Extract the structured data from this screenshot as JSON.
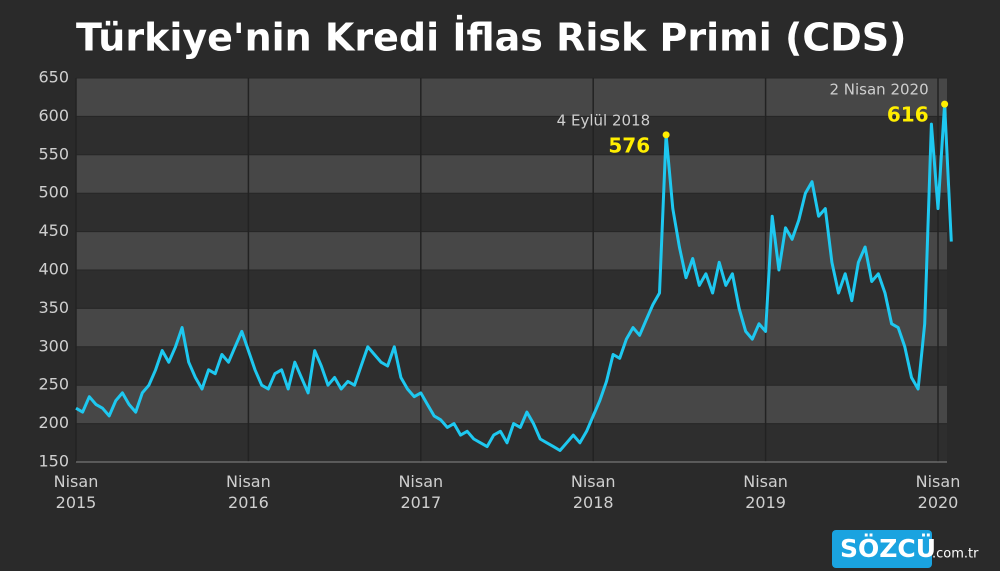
{
  "chart_data": {
    "type": "line",
    "title": "Türkiye'nin Kredi İflas Risk Primi (CDS)",
    "categories": [
      "Nisan 2015",
      null,
      null,
      null,
      null,
      null,
      null,
      null,
      null,
      null,
      null,
      null,
      null,
      null,
      null,
      null,
      null,
      null,
      null,
      null,
      null,
      null,
      null,
      null,
      null,
      null,
      "Nisan 2016",
      null,
      null,
      null,
      null,
      null,
      null,
      null,
      null,
      null,
      null,
      null,
      null,
      null,
      null,
      null,
      null,
      null,
      null,
      null,
      null,
      null,
      null,
      null,
      null,
      null,
      "Nisan 2017",
      null,
      null,
      null,
      null,
      null,
      null,
      null,
      null,
      null,
      null,
      null,
      null,
      null,
      null,
      null,
      null,
      null,
      null,
      null,
      null,
      null,
      null,
      null,
      null,
      null,
      "Nisan 2018",
      null,
      null,
      null,
      null,
      null,
      null,
      null,
      null,
      null,
      null,
      null,
      null,
      null,
      null,
      null,
      null,
      null,
      null,
      null,
      null,
      null,
      null,
      null,
      null,
      null,
      "Nisan 2019",
      null,
      null,
      null,
      null,
      null,
      null,
      null,
      null,
      null,
      null,
      null,
      null,
      null,
      null,
      null,
      null,
      null,
      null,
      null,
      null,
      null,
      null,
      null,
      null,
      null,
      "Nisan 2020",
      null,
      null
    ],
    "series": [
      {
        "name": "CDS",
        "color": "#1ec8f0",
        "values": [
          220,
          215,
          235,
          225,
          220,
          210,
          230,
          240,
          225,
          215,
          240,
          250,
          270,
          295,
          280,
          300,
          325,
          280,
          260,
          245,
          270,
          265,
          290,
          280,
          300,
          320,
          295,
          270,
          250,
          245,
          265,
          270,
          245,
          280,
          260,
          240,
          295,
          275,
          250,
          260,
          245,
          255,
          250,
          275,
          300,
          290,
          280,
          275,
          300,
          260,
          245,
          235,
          240,
          225,
          210,
          205,
          195,
          200,
          185,
          190,
          180,
          175,
          170,
          185,
          190,
          175,
          200,
          195,
          215,
          200,
          180,
          175,
          170,
          165,
          175,
          185,
          175,
          190,
          210,
          230,
          255,
          290,
          285,
          310,
          325,
          315,
          335,
          355,
          370,
          576,
          480,
          430,
          390,
          415,
          380,
          395,
          370,
          410,
          380,
          395,
          350,
          320,
          310,
          330,
          320,
          470,
          400,
          455,
          440,
          465,
          500,
          515,
          470,
          480,
          410,
          370,
          395,
          360,
          410,
          430,
          385,
          395,
          370,
          330,
          325,
          300,
          260,
          245,
          330,
          590,
          480,
          616,
          437
        ]
      }
    ],
    "ylim": [
      150,
      650
    ],
    "yticks": [
      150,
      200,
      250,
      300,
      350,
      400,
      450,
      500,
      550,
      600,
      650
    ],
    "grid": true,
    "annotations": [
      {
        "text": "4 Eylül 2018",
        "value": 576
      },
      {
        "text": "2 Nisan 2020",
        "value": 616
      }
    ],
    "logo": "SÖZCÜ",
    "logo_suffix": ".com.tr"
  }
}
